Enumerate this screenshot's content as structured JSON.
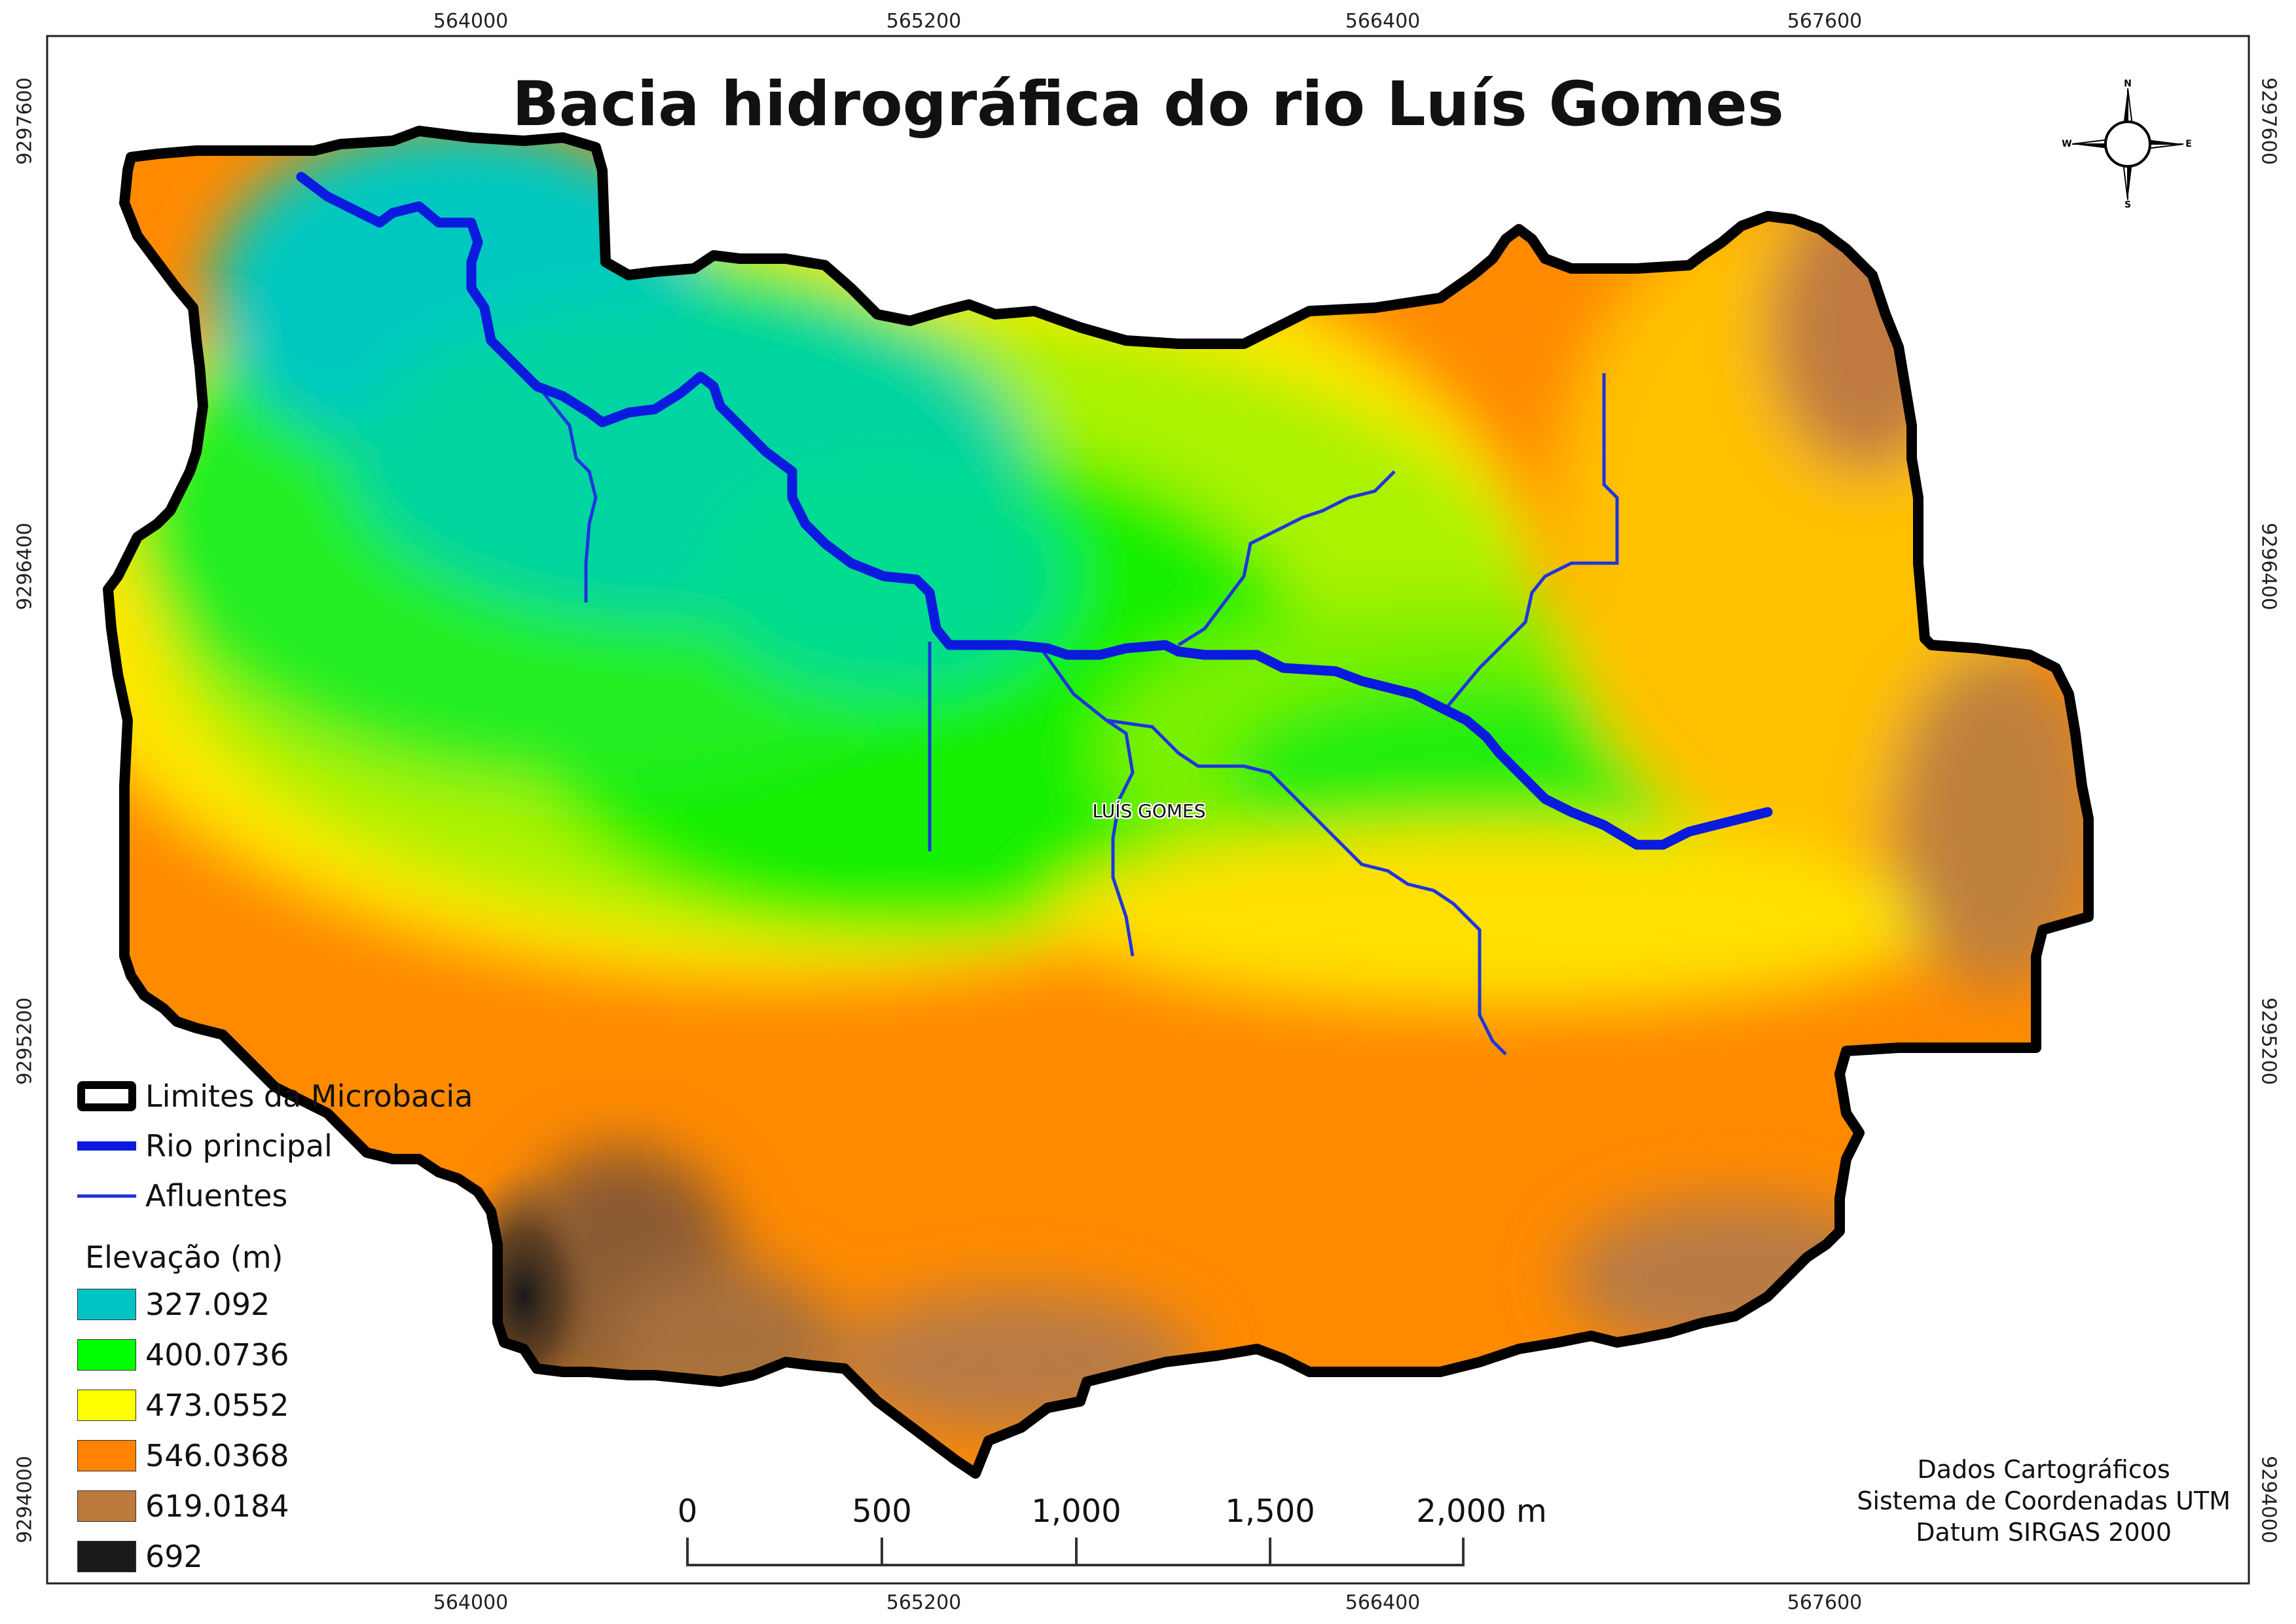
{
  "title": "Bacia hidrográfica do rio Luís Gomes",
  "grid": {
    "eastings": [
      "564000",
      "565200",
      "566400",
      "567600"
    ],
    "northings": [
      "9297600",
      "9296400",
      "9295200",
      "9294000"
    ]
  },
  "town_label": "LUÍS GOMES",
  "legend": {
    "boundary_label": "Limites da Microbacia",
    "main_river_label": "Rio principal",
    "tributaries_label": "Afluentes",
    "elevation_heading": "Elevação (m)",
    "elevation_classes": [
      {
        "label": "327.092",
        "color": "#00c3c3"
      },
      {
        "label": "400.0736",
        "color": "#00ff00"
      },
      {
        "label": "473.0552",
        "color": "#ffff00"
      },
      {
        "label": "546.0368",
        "color": "#ff8200"
      },
      {
        "label": "619.0184",
        "color": "#bd7a3c"
      },
      {
        "label": "692",
        "color": "#1a1a1a"
      }
    ]
  },
  "scale_bar": {
    "labels": [
      "0",
      "500",
      "1,000",
      "1,500",
      "2,000 m"
    ]
  },
  "credits": {
    "line1": "Dados Cartográficos",
    "line2": "Sistema de Coordenadas UTM",
    "line3": "Datum SIRGAS 2000"
  },
  "north_arrow": {
    "n": "N",
    "s": "S",
    "e": "E",
    "w": "W"
  },
  "colors": {
    "boundary": "#000000",
    "river": "#0a1adf",
    "tributary": "#1f34e0"
  }
}
